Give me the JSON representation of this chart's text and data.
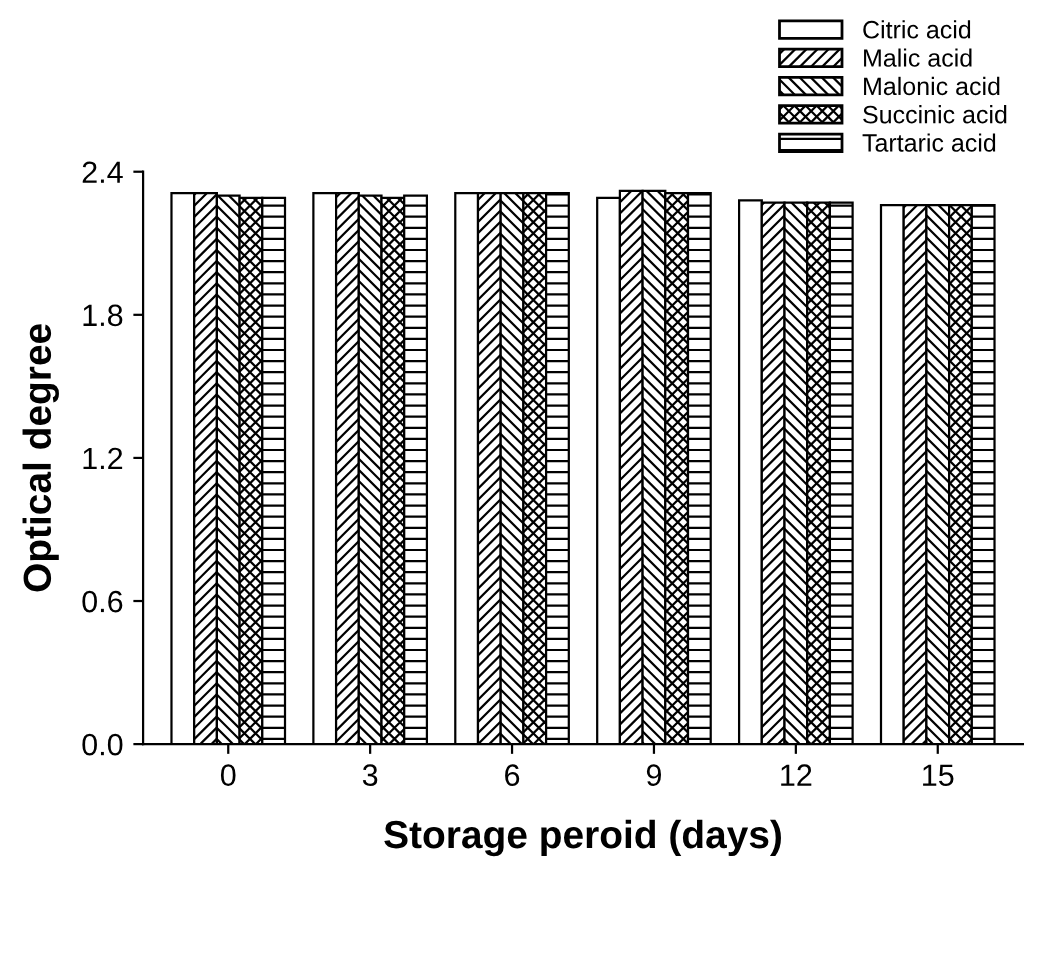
{
  "chart_data": {
    "type": "bar",
    "xlabel": "Storage peroid (days)",
    "ylabel": "Optical degree",
    "categories": [
      "0",
      "3",
      "6",
      "9",
      "12",
      "15"
    ],
    "ylim": [
      0,
      2.4
    ],
    "yticks": [
      {
        "value": 0,
        "label": "0.0"
      },
      0.6,
      1.2,
      1.8,
      2.4
    ],
    "grid": false,
    "legend": "top right",
    "series": [
      {
        "name": "Citric acid",
        "color": "#ffffff",
        "values": [
          2.31,
          2.31,
          2.31,
          2.29,
          2.28,
          2.26
        ]
      },
      {
        "name": "Malic acid",
        "color": "#000000",
        "values": [
          2.31,
          2.31,
          2.31,
          2.32,
          2.27,
          2.26
        ]
      },
      {
        "name": "Malonic acid",
        "color": "#000000",
        "values": [
          2.3,
          2.3,
          2.31,
          2.32,
          2.27,
          2.26
        ]
      },
      {
        "name": "Succinic acid",
        "color": "#000000",
        "values": [
          2.29,
          2.29,
          2.31,
          2.31,
          2.27,
          2.26
        ]
      },
      {
        "name": "Tartaric acid",
        "color": "#000000",
        "values": [
          2.29,
          2.3,
          2.31,
          2.31,
          2.27,
          2.26
        ]
      }
    ]
  }
}
